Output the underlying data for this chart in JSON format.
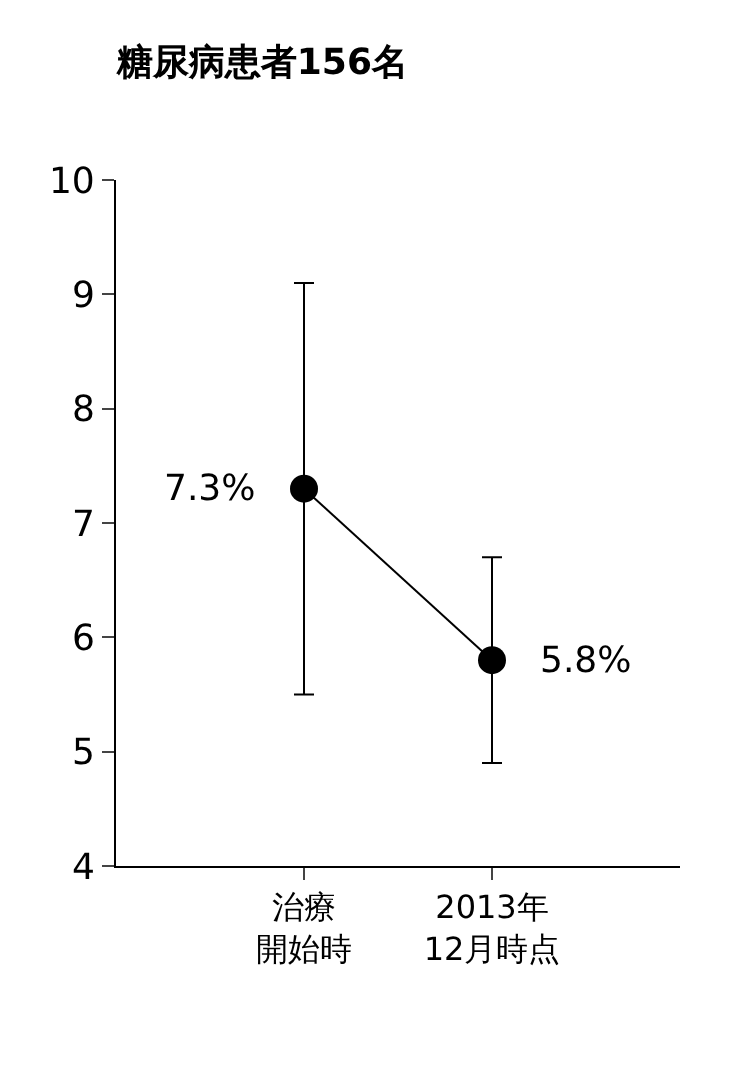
{
  "chart_data": {
    "type": "line",
    "title": "糖尿病患者156名",
    "categories": [
      "治療開始時",
      "2013年12月時点"
    ],
    "series": [
      {
        "color": "#000000",
        "values": [
          7.3,
          5.8
        ],
        "errors": [
          1.8,
          0.9
        ],
        "value_labels": [
          "7.3%",
          "5.8%"
        ]
      }
    ],
    "ylim": [
      4,
      10
    ],
    "yticks": [
      4,
      5,
      6,
      7,
      8,
      9,
      10
    ],
    "marker": "circle",
    "line_style": "solid"
  }
}
